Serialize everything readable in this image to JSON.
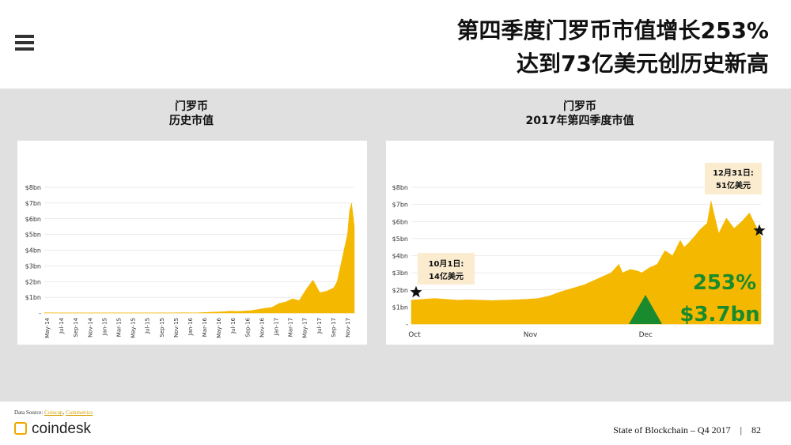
{
  "header": {
    "title_line1": "第四季度门罗币市值增长253%",
    "title_line2": "达到73亿美元创历史新高"
  },
  "left_chart": {
    "title_line1": "门罗币",
    "title_line2": "历史市值"
  },
  "right_chart": {
    "title_line1": "门罗币",
    "title_line2": "2017年第四季度市值"
  },
  "chart_data": [
    {
      "type": "area",
      "title": "门罗币 历史市值",
      "ylabel": "",
      "y_ticks": [
        "-",
        "$1bn",
        "$2bn",
        "$3bn",
        "$4bn",
        "$5bn",
        "$6bn",
        "$7bn",
        "$8bn"
      ],
      "ylim": [
        0,
        8
      ],
      "unit": "$bn",
      "x_ticks": [
        "May-14",
        "Jul-14",
        "Sep-14",
        "Nov-14",
        "Jan-15",
        "Mar-15",
        "May-15",
        "Jul-15",
        "Sep-15",
        "Nov-15",
        "Jan-16",
        "Mar-16",
        "May-16",
        "Jul-16",
        "Sep-16",
        "Nov-16",
        "Jan-17",
        "Mar-17",
        "May-17",
        "Jul-17",
        "Sep-17",
        "Nov-17"
      ],
      "x": [
        0,
        2,
        4,
        6,
        8,
        10,
        12,
        14,
        16,
        18,
        20,
        22,
        24,
        26,
        27,
        28,
        30,
        32,
        33,
        34,
        35,
        36,
        37,
        38,
        39,
        40,
        41,
        42,
        42.5,
        43,
        43.5,
        44,
        44.3,
        44.6,
        45
      ],
      "values": [
        0.02,
        0.01,
        0.01,
        0.01,
        0.01,
        0.01,
        0.01,
        0.01,
        0.01,
        0.01,
        0.02,
        0.01,
        0.05,
        0.08,
        0.12,
        0.1,
        0.15,
        0.3,
        0.35,
        0.6,
        0.7,
        0.9,
        0.8,
        1.5,
        2.1,
        1.3,
        1.4,
        1.6,
        2.0,
        3.0,
        4.0,
        5.0,
        6.5,
        7.0,
        5.5
      ],
      "series_color": "#f5b800",
      "grid": true
    },
    {
      "type": "area",
      "title": "门罗币 2017年第四季度市值",
      "y_ticks": [
        "-",
        "$1bn",
        "$2bn",
        "$3bn",
        "$4bn",
        "$5bn",
        "$6bn",
        "$7bn",
        "$8bn"
      ],
      "ylim": [
        0,
        8
      ],
      "unit": "$bn",
      "x_ticks": [
        "Oct",
        "Nov",
        "Dec"
      ],
      "x": [
        0,
        3,
        6,
        9,
        12,
        15,
        18,
        21,
        24,
        27,
        30,
        33,
        36,
        39,
        42,
        45,
        48,
        50,
        52,
        54,
        55,
        57,
        59,
        60,
        62,
        64,
        66,
        68,
        70,
        71,
        72,
        74,
        75,
        77,
        78,
        80,
        82,
        84,
        86,
        88,
        90,
        91
      ],
      "values": [
        1.4,
        1.45,
        1.5,
        1.45,
        1.4,
        1.42,
        1.4,
        1.38,
        1.4,
        1.42,
        1.45,
        1.5,
        1.65,
        1.9,
        2.1,
        2.3,
        2.6,
        2.8,
        3.0,
        3.5,
        3.0,
        3.2,
        3.1,
        3.0,
        3.3,
        3.5,
        4.3,
        4.0,
        4.9,
        4.5,
        4.7,
        5.2,
        5.5,
        5.9,
        7.2,
        5.3,
        6.2,
        5.6,
        6.0,
        6.5,
        5.6,
        5.1
      ],
      "series_color": "#f5b800",
      "start_label": {
        "line1": "10月1日:",
        "line2": "14亿美元"
      },
      "end_label": {
        "line1": "12月31日:",
        "line2": "51亿美元"
      },
      "growth_pct": "253%",
      "growth_amount": "$3.7bn",
      "growth_color": "#1a8a2e",
      "grid": true
    }
  ],
  "footer": {
    "source_prefix": "Data Source: ",
    "source_links": [
      "Coincap",
      "Coinmetrics"
    ],
    "logo_text": "coindesk",
    "report": "State of Blockchain – Q4 2017",
    "separator": "|",
    "page": "82"
  }
}
